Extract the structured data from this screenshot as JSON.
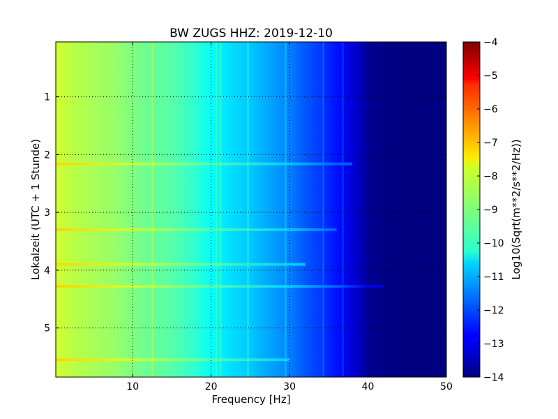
{
  "chart_data": {
    "type": "heatmap",
    "title": "BW ZUGS HHZ: 2019-12-10",
    "xlabel": "Frequency [Hz]",
    "ylabel": "Lokalzeit (UTC + 1 Stunde)",
    "xlim": [
      0.2,
      50
    ],
    "ylim": [
      5.85,
      0.05
    ],
    "xticks": [
      10,
      20,
      30,
      40,
      50
    ],
    "xtick_labels": [
      "10",
      "20",
      "30",
      "40",
      "50"
    ],
    "yticks": [
      1,
      2,
      3,
      4,
      5
    ],
    "ytick_labels": [
      "1",
      "2",
      "3",
      "4",
      "5"
    ],
    "grid": true,
    "colormap": "jet",
    "colorbar": {
      "label": "Log10(Sqrt(m**2/s**2/Hz))",
      "range": [
        -14,
        -4
      ],
      "ticks": [
        -4,
        -5,
        -6,
        -7,
        -8,
        -9,
        -10,
        -11,
        -12,
        -13,
        -14
      ],
      "tick_labels": [
        "−4",
        "−5",
        "−6",
        "−7",
        "−8",
        "−9",
        "−10",
        "−11",
        "−12",
        "−13",
        "−14"
      ]
    },
    "spectrum_profile": {
      "frequency_hz": [
        0.2,
        2,
        5,
        8,
        10,
        12,
        15,
        18,
        20,
        22,
        25,
        28,
        30,
        32,
        34,
        36,
        38,
        39,
        40,
        42,
        45,
        50
      ],
      "log10_amplitude": [
        -8.2,
        -8.4,
        -8.6,
        -8.8,
        -9.0,
        -9.2,
        -9.4,
        -9.8,
        -10.2,
        -10.5,
        -10.8,
        -11.2,
        -11.5,
        -11.9,
        -12.2,
        -12.6,
        -13.1,
        -13.4,
        -13.8,
        -13.95,
        -14.0,
        -14.0
      ]
    },
    "vertical_lines_hz": [
      12.5,
      20.7,
      21.2,
      24.7,
      29.5,
      34.3,
      36.8
    ],
    "horizontal_events_hours": [
      {
        "time": 2.16,
        "f_max": 38
      },
      {
        "time": 3.3,
        "f_max": 36
      },
      {
        "time": 3.9,
        "f_max": 32
      },
      {
        "time": 4.28,
        "f_max": 42
      },
      {
        "time": 5.55,
        "f_max": 30
      }
    ]
  }
}
